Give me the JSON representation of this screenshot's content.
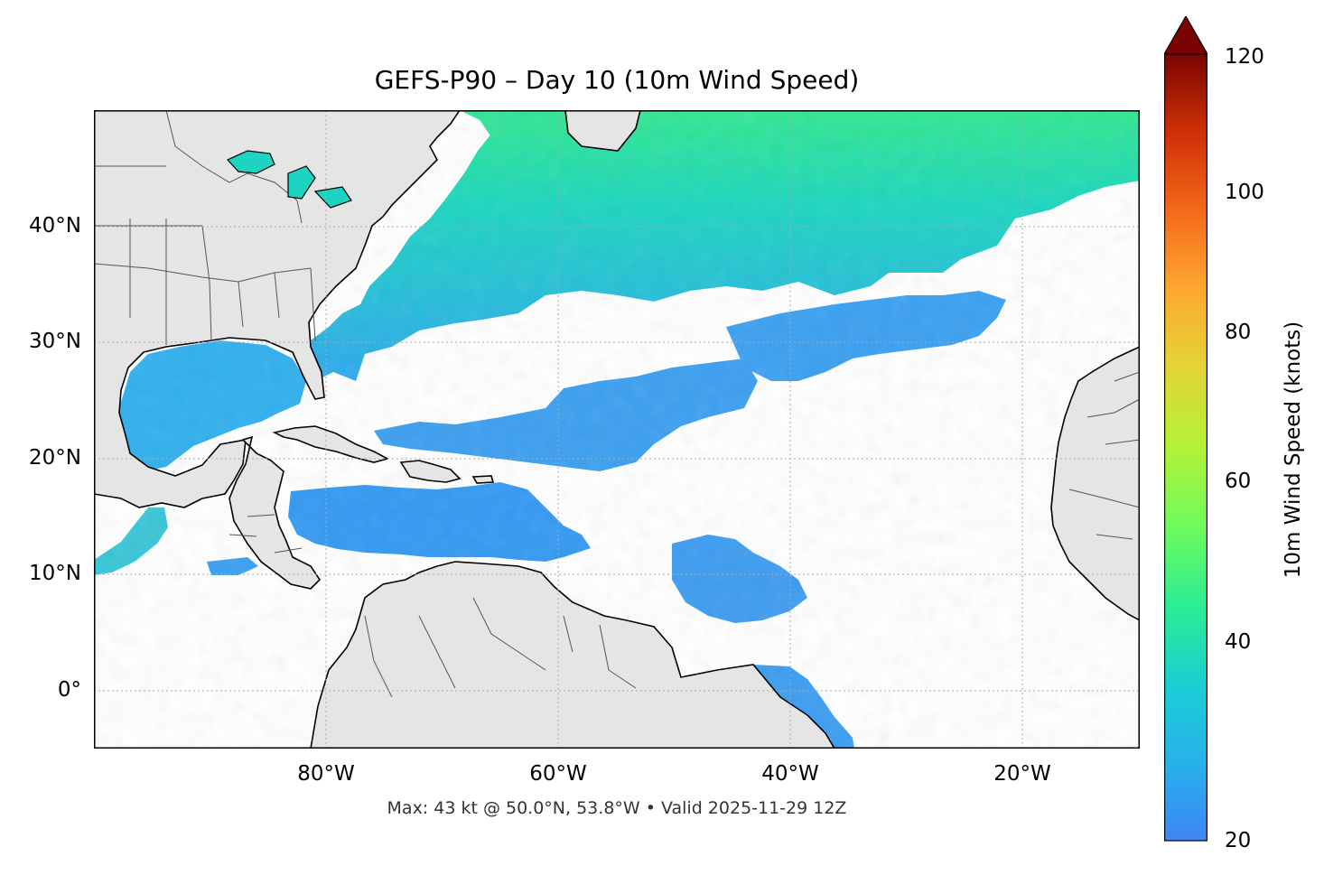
{
  "title": "GEFS-P90 – Day 10 (10m Wind Speed)",
  "caption": "Max: 43 kt @ 50.0°N, 53.8°W • Valid 2025-11-29 12Z",
  "map": {
    "lon_range": [
      -100,
      -10
    ],
    "lat_range": [
      -5,
      50
    ],
    "x_ticks": [
      "80°W",
      "60°W",
      "40°W",
      "20°W"
    ],
    "y_ticks": [
      "40°N",
      "30°N",
      "20°N",
      "10°N",
      "0°"
    ],
    "gridlines": "dotted",
    "land_color": "#e5e5e5",
    "ocean_color": "#ffffff"
  },
  "colorbar": {
    "label": "10m Wind Speed (knots)",
    "ticks": [
      "120",
      "100",
      "80",
      "60",
      "40",
      "20"
    ],
    "range": [
      20,
      120
    ],
    "extend": "max",
    "colormap": "turbo",
    "extend_color": "#7a0403"
  }
}
